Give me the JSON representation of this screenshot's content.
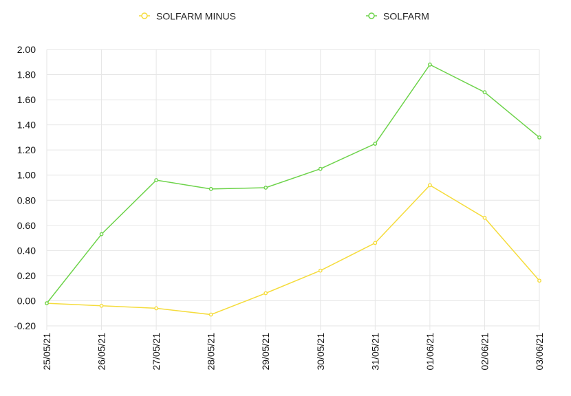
{
  "chart_data": {
    "type": "line",
    "title": "",
    "xlabel": "",
    "ylabel": "",
    "categories": [
      "25/05/21",
      "26/05/21",
      "27/05/21",
      "28/05/21",
      "29/05/21",
      "30/05/21",
      "31/05/21",
      "01/06/21",
      "02/06/21",
      "03/06/21"
    ],
    "ylim": [
      -0.2,
      2.0
    ],
    "yticks": [
      "2.00",
      "1.80",
      "1.60",
      "1.40",
      "1.20",
      "1.00",
      "0.80",
      "0.60",
      "0.40",
      "0.20",
      "0.00",
      "-0.20"
    ],
    "grid": true,
    "legend_position": "top",
    "series": [
      {
        "name": "SOLFARM MINUS",
        "color": "#f5dc3c",
        "values": [
          -0.02,
          -0.04,
          -0.06,
          -0.11,
          0.06,
          0.24,
          0.46,
          0.92,
          0.66,
          0.16
        ]
      },
      {
        "name": "SOLFARM",
        "color": "#6dd34a",
        "values": [
          -0.02,
          0.53,
          0.96,
          0.89,
          0.9,
          1.05,
          1.25,
          1.88,
          1.66,
          1.3
        ]
      }
    ]
  }
}
